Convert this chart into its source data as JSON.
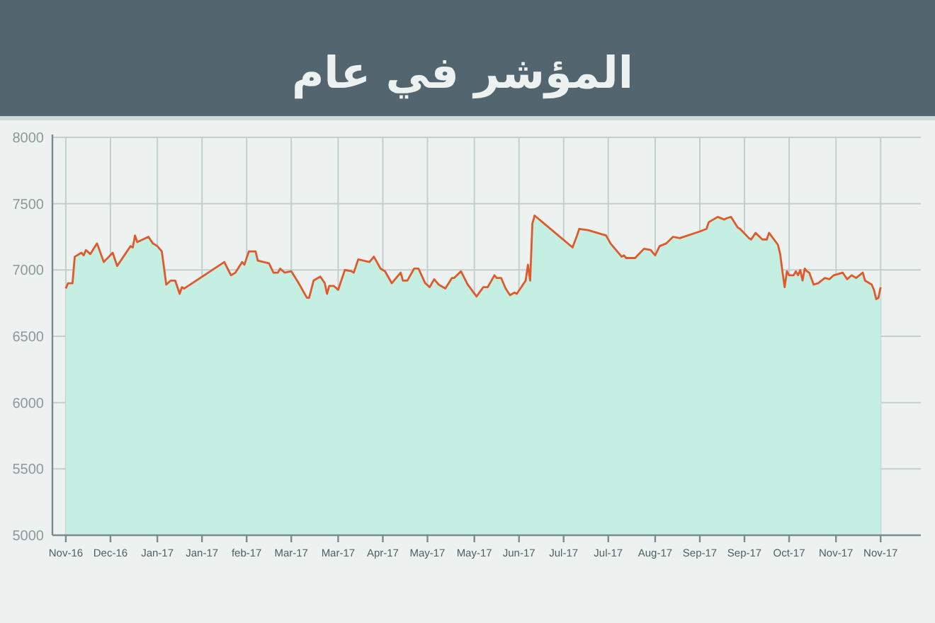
{
  "chart_data": {
    "type": "area",
    "title": "المؤشر في عام",
    "x": [
      "2016-11-26",
      "2016-11-27",
      "2016-11-29",
      "2016-11-30",
      "2016-12-03",
      "2016-12-04",
      "2016-12-05",
      "2016-12-07",
      "2016-12-10",
      "2016-12-13",
      "2016-12-17",
      "2016-12-19",
      "2016-12-25",
      "2016-12-26",
      "2016-12-27",
      "2016-12-28",
      "2017-01-02",
      "2017-01-04",
      "2017-01-06",
      "2017-01-08",
      "2017-01-10",
      "2017-01-12",
      "2017-01-14",
      "2017-01-16",
      "2017-01-17",
      "2017-01-18",
      "2017-02-05",
      "2017-02-08",
      "2017-02-10",
      "2017-02-13",
      "2017-02-14",
      "2017-02-16",
      "2017-02-19",
      "2017-02-20",
      "2017-02-25",
      "2017-02-27",
      "2017-03-01",
      "2017-03-02",
      "2017-03-04",
      "2017-03-07",
      "2017-03-10",
      "2017-03-14",
      "2017-03-15",
      "2017-03-17",
      "2017-03-20",
      "2017-03-22",
      "2017-03-23",
      "2017-03-24",
      "2017-03-26",
      "2017-03-28",
      "2017-03-29",
      "2017-03-31",
      "2017-04-03",
      "2017-04-04",
      "2017-04-06",
      "2017-04-11",
      "2017-04-13",
      "2017-04-16",
      "2017-04-18",
      "2017-04-21",
      "2017-04-24",
      "2017-04-25",
      "2017-04-26",
      "2017-04-28",
      "2017-05-01",
      "2017-05-03",
      "2017-05-06",
      "2017-05-08",
      "2017-05-10",
      "2017-05-12",
      "2017-05-15",
      "2017-05-18",
      "2017-05-19",
      "2017-05-22",
      "2017-05-25",
      "2017-05-29",
      "2017-06-01",
      "2017-06-03",
      "2017-06-06",
      "2017-06-07",
      "2017-06-09",
      "2017-06-11",
      "2017-06-13",
      "2017-06-15",
      "2017-06-16",
      "2017-06-18",
      "2017-06-20",
      "2017-06-21",
      "2017-06-22",
      "2017-06-23",
      "2017-06-24",
      "2017-07-11",
      "2017-07-13",
      "2017-07-14",
      "2017-07-18",
      "2017-07-26",
      "2017-07-28",
      "2017-07-31",
      "2017-08-02",
      "2017-08-03",
      "2017-08-04",
      "2017-08-08",
      "2017-08-12",
      "2017-08-15",
      "2017-08-17",
      "2017-08-19",
      "2017-08-22",
      "2017-08-25",
      "2017-08-28",
      "2017-09-06",
      "2017-09-09",
      "2017-09-10",
      "2017-09-14",
      "2017-09-17",
      "2017-09-18",
      "2017-09-20",
      "2017-09-23",
      "2017-09-24",
      "2017-09-28",
      "2017-09-29",
      "2017-10-01",
      "2017-10-04",
      "2017-10-06",
      "2017-10-07",
      "2017-10-11",
      "2017-10-12",
      "2017-10-13",
      "2017-10-14",
      "2017-10-15",
      "2017-10-16",
      "2017-10-18",
      "2017-10-19",
      "2017-10-20",
      "2017-10-21",
      "2017-10-22",
      "2017-10-23",
      "2017-10-24",
      "2017-10-25",
      "2017-10-27",
      "2017-10-29",
      "2017-11-01",
      "2017-11-03",
      "2017-11-05",
      "2017-11-09",
      "2017-11-11",
      "2017-11-13",
      "2017-11-15",
      "2017-11-18",
      "2017-11-19",
      "2017-11-22",
      "2017-11-23",
      "2017-11-24",
      "2017-11-25",
      "2017-11-26"
    ],
    "series": [
      {
        "color": "#e0592a",
        "values": [
          6860,
          6900,
          6900,
          7100,
          7130,
          7110,
          7150,
          7120,
          7200,
          7060,
          7130,
          7030,
          7180,
          7170,
          7260,
          7210,
          7250,
          7200,
          7180,
          7140,
          6890,
          6920,
          6920,
          6820,
          6870,
          6860,
          7060,
          6960,
          6980,
          7060,
          7040,
          7140,
          7140,
          7070,
          7050,
          6980,
          6980,
          7010,
          6980,
          6990,
          6910,
          6790,
          6790,
          6920,
          6950,
          6900,
          6820,
          6880,
          6880,
          6850,
          6900,
          7000,
          6990,
          6980,
          7080,
          7060,
          7100,
          7010,
          6990,
          6900,
          6960,
          6980,
          6920,
          6920,
          7010,
          7010,
          6900,
          6870,
          6930,
          6890,
          6860,
          6940,
          6940,
          6990,
          6890,
          6800,
          6870,
          6870,
          6960,
          6940,
          6940,
          6860,
          6810,
          6830,
          6820,
          6870,
          6920,
          7040,
          6920,
          7350,
          7410,
          7170,
          7260,
          7310,
          7300,
          7260,
          7200,
          7140,
          7100,
          7110,
          7090,
          7090,
          7160,
          7150,
          7110,
          7180,
          7200,
          7250,
          7240,
          7290,
          7310,
          7360,
          7400,
          7380,
          7390,
          7400,
          7320,
          7310,
          7240,
          7230,
          7280,
          7230,
          7230,
          7280,
          7190,
          7120,
          6990,
          6870,
          6990,
          6960,
          6960,
          6990,
          6960,
          7000,
          6920,
          7010,
          6990,
          6980,
          6890,
          6900,
          6940,
          6930,
          6960,
          6980,
          6930,
          6960,
          6940,
          6980,
          6920,
          6890,
          6850,
          6780,
          6790,
          6870
        ]
      }
    ],
    "xlim": [
      "2016-11-20",
      "2017-12-14"
    ],
    "xticks": [
      {
        "value": "2016-11-26",
        "label": "Nov-16"
      },
      {
        "value": "2016-12-16",
        "label": "Dec-16"
      },
      {
        "value": "2017-01-06",
        "label": "Jan-17"
      },
      {
        "value": "2017-01-26",
        "label": "Jan-17"
      },
      {
        "value": "2017-02-15",
        "label": "feb-17"
      },
      {
        "value": "2017-03-07",
        "label": "Mar-17"
      },
      {
        "value": "2017-03-28",
        "label": "Mar-17"
      },
      {
        "value": "2017-04-17",
        "label": "Apr-17"
      },
      {
        "value": "2017-05-07",
        "label": "May-17"
      },
      {
        "value": "2017-05-28",
        "label": "May-17"
      },
      {
        "value": "2017-06-17",
        "label": "Jun-17"
      },
      {
        "value": "2017-07-07",
        "label": "Jul-17"
      },
      {
        "value": "2017-07-27",
        "label": "Jul-17"
      },
      {
        "value": "2017-08-17",
        "label": "Aug-17"
      },
      {
        "value": "2017-09-06",
        "label": "Sep-17"
      },
      {
        "value": "2017-09-26",
        "label": "Sep-17"
      },
      {
        "value": "2017-10-16",
        "label": "Oct-17"
      },
      {
        "value": "2017-11-06",
        "label": "Nov-17"
      },
      {
        "value": "2017-11-26",
        "label": "Nov-17"
      }
    ],
    "ylim": [
      5000,
      8000
    ],
    "yticks": [
      5000,
      5500,
      6000,
      6500,
      7000,
      7500,
      8000
    ],
    "grid": true
  }
}
